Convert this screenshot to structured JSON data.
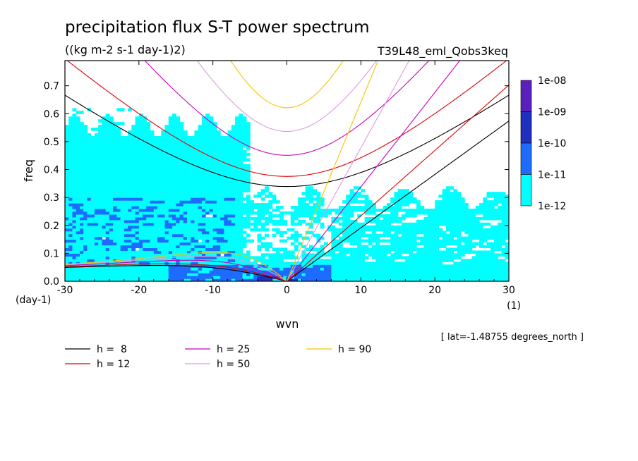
{
  "chart_data": {
    "type": "heatmap",
    "title": "precipitation flux S-T power spectrum",
    "subtitle": "((kg m-2 s-1 day-1)2)",
    "experiment": "T39L48_eml_Qobs3keq",
    "xlabel": "wvn",
    "ylabel": "freq",
    "x_unit": "(1)",
    "y_unit": "(day-1)",
    "xlim": [
      -30,
      30
    ],
    "ylim": [
      0,
      0.79
    ],
    "xticks": [
      "-30",
      "-20",
      "-10",
      "0",
      "10",
      "20",
      "30"
    ],
    "yticks": [
      "0.0",
      "0.1",
      "0.2",
      "0.3",
      "0.4",
      "0.5",
      "0.6",
      "0.7"
    ],
    "annotation": "[ lat=-1.48755 degrees_north ]",
    "colorbar": {
      "labels": [
        "1e-08",
        "1e-09",
        "1e-10",
        "1e-11",
        "1e-12"
      ],
      "colors": [
        "#5a1fbf",
        "#1f2fbf",
        "#1e6bff",
        "#00ffff"
      ]
    },
    "dispersion_curves": [
      {
        "label": "h =  8",
        "h": 8,
        "color": "#000000"
      },
      {
        "label": "h = 12",
        "h": 12,
        "color": "#dd0000"
      },
      {
        "label": "h = 25",
        "h": 25,
        "color": "#cc00bb"
      },
      {
        "label": "h = 50",
        "h": 50,
        "color": "#dd99dd"
      },
      {
        "label": "h = 90",
        "h": 90,
        "color": "#f5c400"
      }
    ],
    "heatmap_bands": [
      {
        "freq": [
          0.0,
          0.06
        ],
        "k": [
          -30,
          30
        ],
        "level": "1e-11"
      },
      {
        "freq": [
          0.0,
          0.05
        ],
        "k": [
          -16,
          6
        ],
        "level": "1e-10"
      },
      {
        "freq": [
          0.0,
          0.02
        ],
        "k": [
          -4,
          2
        ],
        "level": "1e-09"
      },
      {
        "freq": [
          0.06,
          0.58
        ],
        "k": [
          -30,
          -5
        ],
        "level": "1e-11"
      },
      {
        "freq": [
          0.06,
          0.3
        ],
        "k": [
          -5,
          30
        ],
        "level": "1e-11"
      },
      {
        "freq": [
          0.05,
          0.3
        ],
        "k": [
          -29,
          -7
        ],
        "level": "1e-10"
      }
    ]
  }
}
